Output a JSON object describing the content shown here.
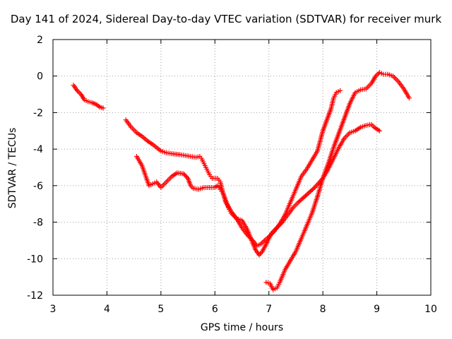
{
  "chart_data": {
    "type": "scatter",
    "title": "Day 141 of 2024, Sidereal Day-to-day VTEC variation (SDTVAR) for receiver murk",
    "xlabel": "GPS time / hours",
    "ylabel": "SDTVAR / TECUs",
    "xlim": [
      3,
      10
    ],
    "ylim": [
      -12,
      2
    ],
    "xticks": [
      "3",
      "4",
      "5",
      "6",
      "7",
      "8",
      "9",
      "10"
    ],
    "yticks": [
      "2",
      "0",
      "-2",
      "-4",
      "-6",
      "-8",
      "-10",
      "-12"
    ],
    "grid": true,
    "marker": "+",
    "color": "#ff0000",
    "series": [
      {
        "name": "segment-1",
        "points": [
          [
            3.38,
            -0.5
          ],
          [
            3.45,
            -0.8
          ],
          [
            3.52,
            -1.0
          ],
          [
            3.58,
            -1.3
          ],
          [
            3.65,
            -1.4
          ],
          [
            3.72,
            -1.45
          ],
          [
            3.8,
            -1.55
          ],
          [
            3.87,
            -1.7
          ],
          [
            3.93,
            -1.75
          ]
        ]
      },
      {
        "name": "segment-2",
        "points": [
          [
            4.35,
            -2.4
          ],
          [
            4.45,
            -2.8
          ],
          [
            4.55,
            -3.1
          ],
          [
            4.65,
            -3.3
          ],
          [
            4.75,
            -3.55
          ],
          [
            4.85,
            -3.75
          ],
          [
            5.0,
            -4.1
          ],
          [
            5.1,
            -4.2
          ],
          [
            5.2,
            -4.25
          ],
          [
            5.35,
            -4.3
          ],
          [
            5.45,
            -4.35
          ],
          [
            5.55,
            -4.4
          ],
          [
            5.65,
            -4.45
          ],
          [
            5.72,
            -4.4
          ],
          [
            5.75,
            -4.5
          ],
          [
            5.8,
            -4.8
          ],
          [
            5.85,
            -5.1
          ],
          [
            5.9,
            -5.4
          ],
          [
            5.95,
            -5.6
          ],
          [
            6.05,
            -5.6
          ],
          [
            6.1,
            -5.8
          ],
          [
            6.15,
            -6.4
          ],
          [
            6.2,
            -6.9
          ],
          [
            6.3,
            -7.4
          ],
          [
            6.4,
            -7.8
          ],
          [
            6.5,
            -8.3
          ],
          [
            6.6,
            -8.7
          ],
          [
            6.7,
            -9.0
          ],
          [
            6.78,
            -9.3
          ],
          [
            6.85,
            -9.2
          ],
          [
            6.92,
            -9.0
          ],
          [
            7.0,
            -8.8
          ],
          [
            7.1,
            -8.5
          ],
          [
            7.2,
            -8.1
          ],
          [
            7.3,
            -7.6
          ],
          [
            7.4,
            -6.9
          ],
          [
            7.5,
            -6.2
          ],
          [
            7.6,
            -5.5
          ],
          [
            7.7,
            -5.1
          ],
          [
            7.8,
            -4.6
          ],
          [
            7.9,
            -4.1
          ],
          [
            8.0,
            -3.0
          ],
          [
            8.1,
            -2.2
          ],
          [
            8.15,
            -1.8
          ],
          [
            8.2,
            -1.2
          ],
          [
            8.25,
            -0.9
          ],
          [
            8.32,
            -0.8
          ]
        ]
      },
      {
        "name": "segment-3",
        "points": [
          [
            4.55,
            -4.4
          ],
          [
            4.65,
            -4.9
          ],
          [
            4.72,
            -5.5
          ],
          [
            4.78,
            -6.0
          ],
          [
            4.85,
            -5.9
          ],
          [
            4.92,
            -5.8
          ],
          [
            5.0,
            -6.1
          ],
          [
            5.1,
            -5.8
          ],
          [
            5.2,
            -5.5
          ],
          [
            5.3,
            -5.3
          ],
          [
            5.42,
            -5.35
          ],
          [
            5.5,
            -5.6
          ],
          [
            5.55,
            -6.0
          ],
          [
            5.6,
            -6.15
          ],
          [
            5.7,
            -6.2
          ],
          [
            5.8,
            -6.1
          ],
          [
            5.9,
            -6.1
          ],
          [
            6.0,
            -6.1
          ],
          [
            6.05,
            -6.0
          ],
          [
            6.1,
            -6.2
          ],
          [
            6.15,
            -6.4
          ],
          [
            6.2,
            -6.8
          ],
          [
            6.25,
            -7.2
          ],
          [
            6.3,
            -7.5
          ],
          [
            6.4,
            -7.8
          ],
          [
            6.5,
            -7.9
          ],
          [
            6.6,
            -8.4
          ],
          [
            6.68,
            -9.0
          ],
          [
            6.75,
            -9.5
          ],
          [
            6.82,
            -9.8
          ],
          [
            6.88,
            -9.6
          ],
          [
            6.95,
            -9.2
          ],
          [
            7.05,
            -8.6
          ],
          [
            7.15,
            -8.3
          ],
          [
            7.25,
            -8.0
          ],
          [
            7.35,
            -7.6
          ],
          [
            7.45,
            -7.2
          ],
          [
            7.55,
            -6.9
          ],
          [
            7.7,
            -6.5
          ],
          [
            7.85,
            -6.1
          ],
          [
            8.0,
            -5.6
          ],
          [
            8.1,
            -5.1
          ],
          [
            8.2,
            -4.5
          ],
          [
            8.3,
            -3.9
          ],
          [
            8.4,
            -3.4
          ],
          [
            8.5,
            -3.1
          ],
          [
            8.6,
            -3.0
          ],
          [
            8.7,
            -2.8
          ],
          [
            8.8,
            -2.7
          ],
          [
            8.9,
            -2.65
          ],
          [
            8.95,
            -2.8
          ],
          [
            9.05,
            -3.0
          ]
        ]
      },
      {
        "name": "segment-4",
        "points": [
          [
            6.95,
            -11.3
          ],
          [
            7.02,
            -11.35
          ],
          [
            7.08,
            -11.7
          ],
          [
            7.15,
            -11.6
          ],
          [
            7.2,
            -11.3
          ],
          [
            7.3,
            -10.6
          ],
          [
            7.4,
            -10.1
          ],
          [
            7.5,
            -9.6
          ],
          [
            7.6,
            -8.9
          ],
          [
            7.7,
            -8.2
          ],
          [
            7.8,
            -7.5
          ],
          [
            7.9,
            -6.6
          ],
          [
            8.0,
            -5.6
          ],
          [
            8.1,
            -4.8
          ],
          [
            8.2,
            -3.9
          ],
          [
            8.3,
            -3.1
          ],
          [
            8.4,
            -2.3
          ],
          [
            8.5,
            -1.5
          ],
          [
            8.6,
            -0.9
          ],
          [
            8.7,
            -0.75
          ],
          [
            8.8,
            -0.7
          ],
          [
            8.9,
            -0.4
          ],
          [
            8.98,
            0.0
          ],
          [
            9.05,
            0.2
          ],
          [
            9.12,
            0.1
          ],
          [
            9.2,
            0.1
          ],
          [
            9.3,
            0.0
          ],
          [
            9.4,
            -0.3
          ],
          [
            9.5,
            -0.7
          ],
          [
            9.6,
            -1.2
          ]
        ]
      }
    ]
  }
}
